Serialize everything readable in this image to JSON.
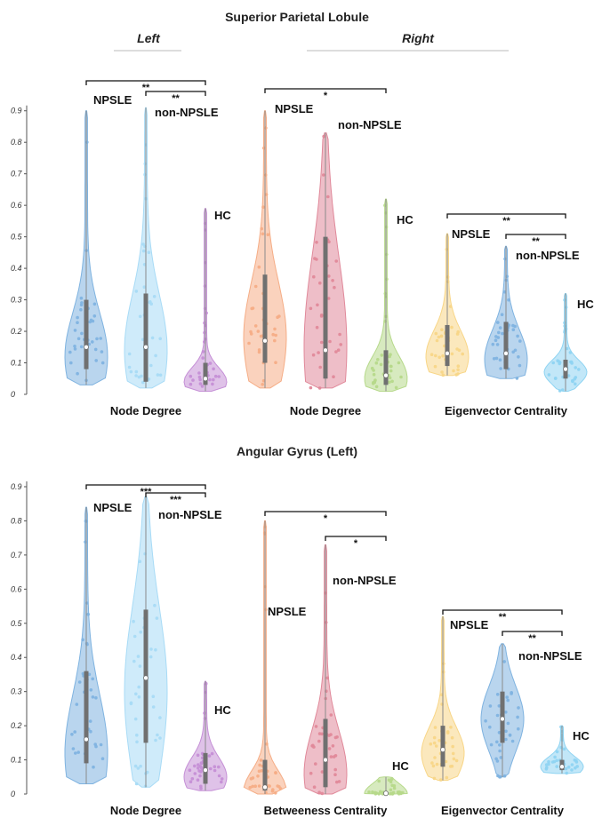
{
  "figure": {
    "title_top": "Superior Parietal Lobule",
    "left_label": "Left",
    "right_label": "Right",
    "title_bottom": "Angular Gyrus (Left)"
  },
  "colors": {
    "blue": "#7fb3e0",
    "lightblue": "#a8dbf6",
    "purple": "#c58fd6",
    "orange": "#f5ad86",
    "pink": "#e0899a",
    "green": "#b6d98a",
    "yellow": "#f8d687",
    "cyan": "#8fd4f2"
  },
  "chart_data": [
    {
      "type": "violin",
      "title": "Superior Parietal Lobule",
      "ylim": [
        0,
        0.95
      ],
      "yticks": [
        "0",
        "0.1",
        "0.2",
        "0.3",
        "0.4",
        "0.5",
        "0.6",
        "0.7",
        "0.8",
        "0.9"
      ],
      "groups": [
        {
          "xlabel": "Node Degree",
          "subtitle": "Left",
          "violins": [
            {
              "label": "NPSLE",
              "color": "blue",
              "min": 0.03,
              "max": 0.9,
              "q1": 0.08,
              "median": 0.15,
              "q3": 0.3,
              "mode": 0.12
            },
            {
              "label": "non-NPSLE",
              "color": "lightblue",
              "min": 0.02,
              "max": 0.91,
              "q1": 0.04,
              "median": 0.15,
              "q3": 0.32,
              "mode": 0.14
            },
            {
              "label": "HC",
              "color": "purple",
              "min": 0.01,
              "max": 0.59,
              "q1": 0.03,
              "median": 0.05,
              "q3": 0.1,
              "mode": 0.04
            }
          ],
          "brackets": [
            {
              "from": 0,
              "to": 2,
              "label": "**"
            },
            {
              "from": 1,
              "to": 2,
              "label": "**"
            }
          ]
        },
        {
          "xlabel": "Node Degree",
          "subtitle": "Right",
          "violins": [
            {
              "label": "NPSLE",
              "color": "orange",
              "min": 0.02,
              "max": 0.9,
              "q1": 0.1,
              "median": 0.17,
              "q3": 0.38,
              "mode": 0.18
            },
            {
              "label": "non-NPSLE",
              "color": "pink",
              "min": 0.02,
              "max": 0.83,
              "q1": 0.05,
              "median": 0.14,
              "q3": 0.5,
              "mode": 0.15
            },
            {
              "label": "HC",
              "color": "green",
              "min": 0.01,
              "max": 0.62,
              "q1": 0.03,
              "median": 0.06,
              "q3": 0.14,
              "mode": 0.05
            }
          ],
          "brackets": [
            {
              "from": 0,
              "to": 2,
              "label": "*"
            }
          ]
        },
        {
          "xlabel": "Eigenvector Centrality",
          "subtitle": "Right",
          "violins": [
            {
              "label": "NPSLE",
              "color": "yellow",
              "min": 0.06,
              "max": 0.51,
              "q1": 0.09,
              "median": 0.13,
              "q3": 0.22,
              "mode": 0.12
            },
            {
              "label": "non-NPSLE",
              "color": "blue",
              "min": 0.05,
              "max": 0.47,
              "q1": 0.08,
              "median": 0.13,
              "q3": 0.23,
              "mode": 0.11
            },
            {
              "label": "HC",
              "color": "cyan",
              "min": 0.01,
              "max": 0.32,
              "q1": 0.05,
              "median": 0.08,
              "q3": 0.11,
              "mode": 0.07
            }
          ],
          "brackets": [
            {
              "from": 0,
              "to": 2,
              "label": "**"
            },
            {
              "from": 1,
              "to": 2,
              "label": "**"
            }
          ]
        }
      ]
    },
    {
      "type": "violin",
      "title": "Angular Gyrus (Left)",
      "ylim": [
        0,
        0.9
      ],
      "yticks": [
        "0",
        "0.1",
        "0.2",
        "0.3",
        "0.4",
        "0.5",
        "0.6",
        "0.7",
        "0.8",
        "0.9"
      ],
      "groups": [
        {
          "xlabel": "Node Degree",
          "violins": [
            {
              "label": "NPSLE",
              "color": "blue",
              "min": 0.03,
              "max": 0.84,
              "q1": 0.09,
              "median": 0.16,
              "q3": 0.36,
              "mode": 0.12
            },
            {
              "label": "non-NPSLE",
              "color": "lightblue",
              "min": 0.02,
              "max": 0.87,
              "q1": 0.15,
              "median": 0.34,
              "q3": 0.54,
              "mode": 0.3
            },
            {
              "label": "HC",
              "color": "purple",
              "min": 0.01,
              "max": 0.33,
              "q1": 0.03,
              "median": 0.07,
              "q3": 0.12,
              "mode": 0.05
            }
          ],
          "brackets": [
            {
              "from": 0,
              "to": 2,
              "label": "***"
            },
            {
              "from": 1,
              "to": 2,
              "label": "***"
            }
          ]
        },
        {
          "xlabel": "Betweeness Centrality",
          "violins": [
            {
              "label": "NPSLE",
              "color": "orange",
              "min": 0.0,
              "max": 0.8,
              "q1": 0.01,
              "median": 0.02,
              "q3": 0.1,
              "mode": 0.01
            },
            {
              "label": "non-NPSLE",
              "color": "pink",
              "min": 0.0,
              "max": 0.73,
              "q1": 0.02,
              "median": 0.1,
              "q3": 0.22,
              "mode": 0.06
            },
            {
              "label": "HC",
              "color": "green",
              "min": 0.0,
              "max": 0.05,
              "q1": 0.0,
              "median": 0.002,
              "q3": 0.006,
              "mode": 0.002
            }
          ],
          "brackets": [
            {
              "from": 0,
              "to": 2,
              "label": "*"
            },
            {
              "from": 1,
              "to": 2,
              "label": "*"
            }
          ]
        },
        {
          "xlabel": "Eigenvector Centrality",
          "violins": [
            {
              "label": "NPSLE",
              "color": "yellow",
              "min": 0.04,
              "max": 0.52,
              "q1": 0.08,
              "median": 0.13,
              "q3": 0.2,
              "mode": 0.12
            },
            {
              "label": "non-NPSLE",
              "color": "blue",
              "min": 0.05,
              "max": 0.44,
              "q1": 0.15,
              "median": 0.22,
              "q3": 0.3,
              "mode": 0.22
            },
            {
              "label": "HC",
              "color": "cyan",
              "min": 0.06,
              "max": 0.2,
              "q1": 0.07,
              "median": 0.08,
              "q3": 0.1,
              "mode": 0.08
            }
          ],
          "brackets": [
            {
              "from": 0,
              "to": 2,
              "label": "**"
            },
            {
              "from": 1,
              "to": 2,
              "label": "**"
            }
          ]
        }
      ]
    }
  ]
}
